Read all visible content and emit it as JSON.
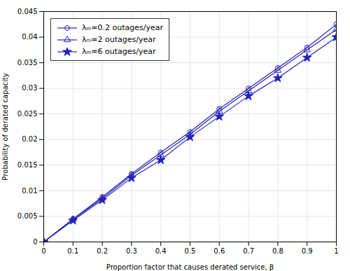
{
  "chart_data": {
    "type": "line",
    "xlabel": "Proportion factor that causes derated service, β",
    "ylabel": "Probability of derated capacity",
    "x": [
      0,
      0.1,
      0.2,
      0.3,
      0.4,
      0.5,
      0.6,
      0.7,
      0.8,
      0.9,
      1.0
    ],
    "series": [
      {
        "name": "λₘ=0.2 outages/year",
        "color": "#2222bb",
        "marker": "circle",
        "values": [
          0,
          0.0045,
          0.0088,
          0.0133,
          0.0175,
          0.0215,
          0.026,
          0.03,
          0.034,
          0.038,
          0.0425
        ]
      },
      {
        "name": "λₘ=2 outages/year",
        "color": "#2222bb",
        "marker": "triangle",
        "values": [
          0,
          0.0044,
          0.0085,
          0.013,
          0.017,
          0.021,
          0.0255,
          0.0295,
          0.0335,
          0.0375,
          0.0415
        ]
      },
      {
        "name": "λₘ=6 outages/year",
        "color": "#2222bb",
        "marker": "star",
        "values": [
          0,
          0.0042,
          0.0082,
          0.0125,
          0.016,
          0.0205,
          0.0245,
          0.0285,
          0.032,
          0.036,
          0.04
        ]
      }
    ],
    "xlim": [
      0,
      1
    ],
    "ylim": [
      0,
      0.045
    ],
    "xticks": [
      0,
      0.1,
      0.2,
      0.3,
      0.4,
      0.5,
      0.6,
      0.7,
      0.8,
      0.9,
      1
    ],
    "yticks": [
      0,
      0.005,
      0.01,
      0.015,
      0.02,
      0.025,
      0.03,
      0.035,
      0.04,
      0.045
    ],
    "grid": true,
    "legend": "upper left"
  }
}
